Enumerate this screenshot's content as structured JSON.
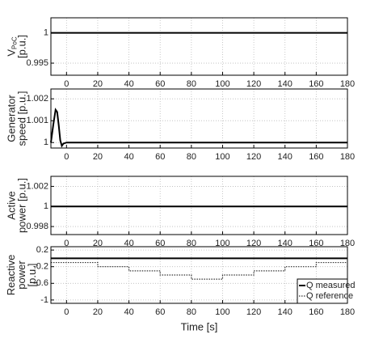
{
  "chart_data": [
    {
      "type": "line",
      "ylabel": [
        "V",
        "[p.u.]"
      ],
      "ylabel_sub": "PoC",
      "x": [
        -10,
        180
      ],
      "series": [
        {
          "name": "VPoC",
          "color": "#000000",
          "values": [
            1,
            1
          ]
        }
      ],
      "xlim": [
        -10,
        180
      ],
      "xticks": [
        0,
        20,
        40,
        60,
        80,
        100,
        120,
        140,
        160,
        180
      ],
      "ylim": [
        0.993,
        1.0025
      ],
      "yticks": [
        0.995,
        1
      ],
      "grid": true
    },
    {
      "type": "line",
      "ylabel": [
        "Generator",
        "speed [p.u.]"
      ],
      "x": [
        -10,
        -8.5,
        -7,
        -6,
        -5,
        -4,
        -3,
        -2,
        0,
        5,
        180
      ],
      "series": [
        {
          "name": "Generator speed",
          "color": "#000000",
          "values": [
            1.0,
            1.0008,
            1.0015,
            1.0014,
            1.0008,
            1.0001,
            0.99985,
            0.99995,
            1.0,
            1.0,
            1.0
          ]
        }
      ],
      "xlim": [
        -10,
        180
      ],
      "xticks": [
        0,
        20,
        40,
        60,
        80,
        100,
        120,
        140,
        160,
        180
      ],
      "ylim": [
        0.99975,
        1.00245
      ],
      "yticks": [
        1,
        1.001,
        1.002
      ],
      "grid": true
    },
    {
      "type": "line",
      "ylabel": [
        "Active",
        "power [p.u.]"
      ],
      "x": [
        -10,
        180
      ],
      "series": [
        {
          "name": "Active power",
          "color": "#000000",
          "values": [
            1,
            1
          ]
        }
      ],
      "xlim": [
        -10,
        180
      ],
      "xticks": [
        0,
        20,
        40,
        60,
        80,
        100,
        120,
        140,
        160,
        180
      ],
      "ylim": [
        0.9972,
        1.003
      ],
      "yticks": [
        0.998,
        1,
        1.002
      ],
      "grid": true
    },
    {
      "type": "line",
      "ylabel": [
        "Reactive",
        "power",
        "[p.u.]"
      ],
      "xlabel": "Time [s]",
      "x": [
        -10,
        20,
        20,
        40,
        40,
        60,
        60,
        80,
        80,
        100,
        100,
        120,
        120,
        140,
        140,
        160,
        160,
        180
      ],
      "series": [
        {
          "name": "Q measured",
          "color": "#000000",
          "linestyle": "solid",
          "values": [
            0,
            0,
            0,
            0,
            0,
            0,
            0,
            0,
            0,
            0,
            0,
            0,
            0,
            0,
            0,
            0,
            0,
            0
          ]
        },
        {
          "name": "Q reference",
          "color": "#333333",
          "linestyle": "dotted",
          "values": [
            -0.1,
            -0.1,
            -0.2,
            -0.2,
            -0.3,
            -0.3,
            -0.4,
            -0.4,
            -0.5,
            -0.5,
            -0.4,
            -0.4,
            -0.3,
            -0.3,
            -0.2,
            -0.2,
            -0.1,
            -0.1
          ]
        }
      ],
      "xlim": [
        -10,
        180
      ],
      "xticks": [
        0,
        20,
        40,
        60,
        80,
        100,
        120,
        140,
        160,
        180
      ],
      "ylim": [
        -1.08,
        0.28
      ],
      "yticks": [
        -1,
        -0.6,
        -0.2,
        0.2
      ],
      "grid": true,
      "legend": "lower right"
    }
  ]
}
